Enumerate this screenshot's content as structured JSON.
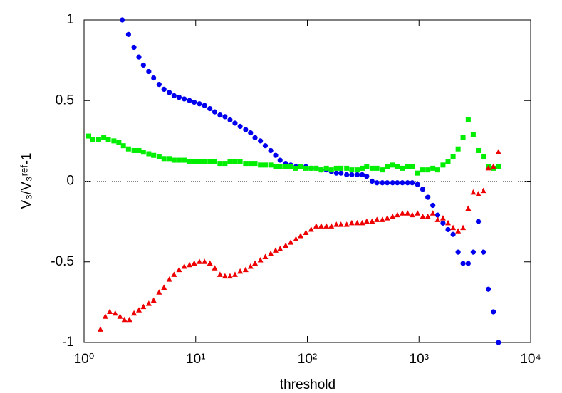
{
  "chart_data": {
    "type": "scatter",
    "x_label": "threshold",
    "y_label": "V₃/V₃ʳᵉᶠ-1",
    "xscale": "log",
    "xlim": [
      1,
      10000
    ],
    "xticks": [
      {
        "value": 1,
        "label": "10⁰"
      },
      {
        "value": 10,
        "label": "10¹"
      },
      {
        "value": 100,
        "label": "10²"
      },
      {
        "value": 1000,
        "label": "10³"
      },
      {
        "value": 10000,
        "label": "10⁴"
      }
    ],
    "ylim": [
      -1,
      1
    ],
    "yticks": [
      -1,
      -0.5,
      0,
      0.5,
      1
    ],
    "zero_line": true,
    "series": [
      {
        "color": "#0000ee",
        "marker": "circle",
        "x": [
          2.2,
          2.5,
          2.8,
          3.1,
          3.4,
          3.8,
          4.2,
          4.7,
          5.2,
          5.8,
          6.4,
          7.1,
          7.9,
          8.8,
          9.7,
          10.8,
          12,
          13.4,
          14.8,
          16.5,
          18.3,
          20.3,
          22.5,
          25,
          28,
          31,
          34,
          38,
          42,
          47,
          52,
          57,
          64,
          71,
          79,
          87,
          97,
          108,
          120,
          133,
          148,
          164,
          182,
          200,
          225,
          250,
          280,
          310,
          340,
          380,
          420,
          470,
          520,
          580,
          640,
          710,
          790,
          870,
          970,
          1080,
          1200,
          1330,
          1470,
          1640,
          1820,
          2020,
          2240,
          2480,
          2760,
          3060,
          3400,
          3770,
          4180,
          4640,
          5150
        ],
        "values": [
          1.0,
          0.91,
          0.83,
          0.77,
          0.72,
          0.68,
          0.64,
          0.6,
          0.57,
          0.55,
          0.53,
          0.52,
          0.51,
          0.5,
          0.49,
          0.48,
          0.47,
          0.45,
          0.43,
          0.41,
          0.4,
          0.38,
          0.36,
          0.34,
          0.32,
          0.3,
          0.27,
          0.25,
          0.22,
          0.19,
          0.16,
          0.13,
          0.11,
          0.1,
          0.09,
          0.09,
          0.09,
          0.08,
          0.08,
          0.07,
          0.07,
          0.06,
          0.05,
          0.05,
          0.04,
          0.04,
          0.04,
          0.04,
          0.03,
          0.0,
          -0.01,
          -0.01,
          -0.01,
          -0.01,
          -0.01,
          -0.01,
          -0.01,
          -0.01,
          -0.02,
          -0.05,
          -0.1,
          -0.15,
          -0.21,
          -0.26,
          -0.3,
          -0.33,
          -0.44,
          -0.51,
          -0.51,
          -0.44,
          -0.25,
          -0.44,
          -0.67,
          -0.81,
          -1.0
        ]
      },
      {
        "color": "#00ee00",
        "marker": "square",
        "x": [
          1.1,
          1.2,
          1.35,
          1.5,
          1.65,
          1.85,
          2.05,
          2.25,
          2.5,
          2.8,
          3.1,
          3.4,
          3.8,
          4.2,
          4.7,
          5.2,
          5.8,
          6.4,
          7.1,
          7.9,
          8.8,
          9.7,
          10.8,
          12,
          13.4,
          14.8,
          16.5,
          18.3,
          20.3,
          22.5,
          25,
          28,
          31,
          34,
          38,
          42,
          47,
          52,
          57,
          64,
          71,
          79,
          87,
          97,
          108,
          120,
          133,
          148,
          164,
          182,
          200,
          225,
          250,
          280,
          310,
          340,
          380,
          420,
          470,
          520,
          580,
          640,
          710,
          790,
          870,
          970,
          1080,
          1200,
          1330,
          1470,
          1640,
          1820,
          2020,
          2240,
          2480,
          2760,
          3060,
          3400,
          3770,
          4180,
          4640,
          5150
        ],
        "values": [
          0.28,
          0.26,
          0.26,
          0.27,
          0.26,
          0.25,
          0.24,
          0.22,
          0.2,
          0.19,
          0.19,
          0.18,
          0.17,
          0.16,
          0.15,
          0.14,
          0.14,
          0.13,
          0.13,
          0.13,
          0.12,
          0.12,
          0.12,
          0.12,
          0.12,
          0.12,
          0.11,
          0.11,
          0.12,
          0.12,
          0.12,
          0.11,
          0.11,
          0.11,
          0.1,
          0.1,
          0.1,
          0.09,
          0.09,
          0.09,
          0.09,
          0.08,
          0.09,
          0.08,
          0.08,
          0.08,
          0.07,
          0.08,
          0.07,
          0.08,
          0.08,
          0.08,
          0.07,
          0.07,
          0.08,
          0.09,
          0.08,
          0.08,
          0.07,
          0.09,
          0.1,
          0.09,
          0.08,
          0.09,
          0.09,
          0.05,
          0.07,
          0.07,
          0.08,
          0.07,
          0.1,
          0.12,
          0.15,
          0.2,
          0.27,
          0.38,
          0.29,
          0.19,
          0.15,
          0.09,
          0.08,
          0.09
        ]
      },
      {
        "color": "#ee0000",
        "marker": "triangle",
        "x": [
          1.4,
          1.55,
          1.7,
          1.9,
          2.1,
          2.3,
          2.55,
          2.8,
          3.1,
          3.4,
          3.8,
          4.2,
          4.7,
          5.2,
          5.8,
          6.4,
          7.1,
          7.9,
          8.8,
          9.7,
          10.8,
          12,
          13.4,
          14.8,
          16.5,
          18.3,
          20.3,
          22.5,
          25,
          28,
          31,
          34,
          38,
          42,
          47,
          52,
          57,
          64,
          71,
          79,
          87,
          97,
          108,
          120,
          133,
          148,
          164,
          182,
          200,
          225,
          250,
          280,
          310,
          340,
          380,
          420,
          470,
          520,
          580,
          640,
          710,
          790,
          870,
          970,
          1080,
          1200,
          1330,
          1470,
          1640,
          1820,
          2020,
          2240,
          2480,
          2760,
          3060,
          3400,
          3770,
          4180,
          4640,
          5150
        ],
        "values": [
          -0.92,
          -0.84,
          -0.81,
          -0.82,
          -0.84,
          -0.86,
          -0.86,
          -0.82,
          -0.8,
          -0.78,
          -0.76,
          -0.74,
          -0.69,
          -0.66,
          -0.61,
          -0.58,
          -0.55,
          -0.53,
          -0.52,
          -0.51,
          -0.5,
          -0.5,
          -0.51,
          -0.54,
          -0.58,
          -0.59,
          -0.59,
          -0.58,
          -0.56,
          -0.55,
          -0.53,
          -0.51,
          -0.49,
          -0.47,
          -0.45,
          -0.43,
          -0.42,
          -0.4,
          -0.38,
          -0.36,
          -0.34,
          -0.32,
          -0.3,
          -0.28,
          -0.28,
          -0.28,
          -0.28,
          -0.27,
          -0.27,
          -0.27,
          -0.26,
          -0.26,
          -0.26,
          -0.25,
          -0.25,
          -0.24,
          -0.24,
          -0.23,
          -0.22,
          -0.21,
          -0.2,
          -0.2,
          -0.21,
          -0.2,
          -0.22,
          -0.22,
          -0.2,
          -0.24,
          -0.23,
          -0.26,
          -0.29,
          -0.31,
          -0.29,
          -0.17,
          -0.07,
          -0.08,
          -0.06,
          0.08,
          0.09,
          0.18
        ]
      }
    ]
  }
}
